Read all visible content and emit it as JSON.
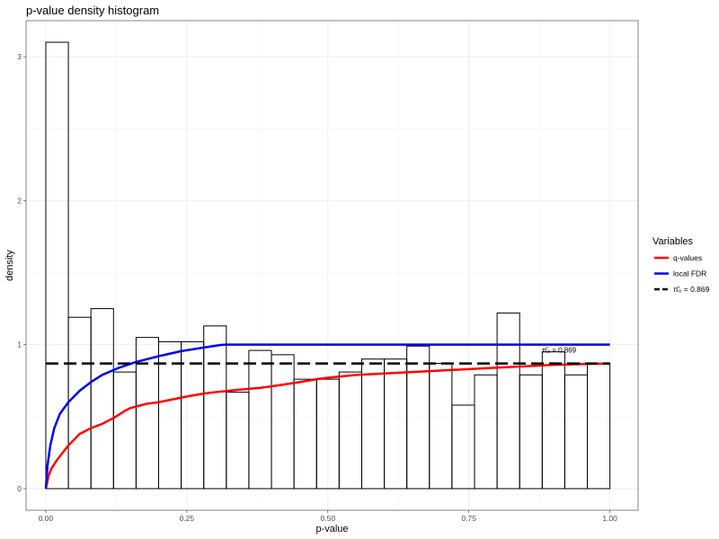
{
  "chart_data": {
    "type": "bar",
    "title": "p-value density histogram",
    "xlabel": "p-value",
    "ylabel": "density",
    "xlim": [
      -0.035,
      1.05
    ],
    "ylim": [
      -0.15,
      3.25
    ],
    "x_ticks": [
      0.0,
      0.25,
      0.5,
      0.75,
      1.0
    ],
    "x_tick_labels": [
      "0.00",
      "0.25",
      "0.50",
      "0.75",
      "1.00"
    ],
    "y_ticks": [
      0,
      1,
      2,
      3
    ],
    "y_tick_labels": [
      "0",
      "1",
      "2",
      "3"
    ],
    "grid": true,
    "histogram": {
      "bin_width": 0.04,
      "bins_start": [
        0.0,
        0.04,
        0.08,
        0.12,
        0.16,
        0.2,
        0.24,
        0.28,
        0.32,
        0.36,
        0.4,
        0.44,
        0.48,
        0.52,
        0.56,
        0.6,
        0.64,
        0.68,
        0.72,
        0.76,
        0.8,
        0.84,
        0.88,
        0.92,
        0.96
      ],
      "density": [
        3.1,
        1.19,
        1.25,
        0.81,
        1.05,
        1.02,
        1.02,
        1.13,
        0.67,
        0.96,
        0.93,
        0.76,
        0.76,
        0.81,
        0.9,
        0.9,
        0.99,
        0.87,
        0.58,
        0.79,
        1.22,
        0.79,
        0.95,
        0.79,
        0.87
      ]
    },
    "series": [
      {
        "name": "q-values",
        "color": "#ff0000",
        "x": [
          0.0,
          0.005,
          0.01,
          0.02,
          0.03,
          0.04,
          0.05,
          0.06,
          0.07,
          0.08,
          0.1,
          0.12,
          0.14,
          0.15,
          0.18,
          0.2,
          0.25,
          0.28,
          0.3,
          0.35,
          0.38,
          0.4,
          0.45,
          0.48,
          0.5,
          0.55,
          0.6,
          0.65,
          0.7,
          0.75,
          0.8,
          0.85,
          0.9,
          0.95,
          1.0
        ],
        "y": [
          0.0,
          0.09,
          0.14,
          0.2,
          0.25,
          0.3,
          0.34,
          0.38,
          0.4,
          0.42,
          0.45,
          0.49,
          0.54,
          0.56,
          0.59,
          0.6,
          0.64,
          0.66,
          0.67,
          0.69,
          0.7,
          0.71,
          0.74,
          0.76,
          0.77,
          0.79,
          0.8,
          0.81,
          0.82,
          0.83,
          0.84,
          0.85,
          0.86,
          0.865,
          0.869
        ]
      },
      {
        "name": "local FDR",
        "color": "#0000ee",
        "x": [
          0.0,
          0.003,
          0.008,
          0.015,
          0.025,
          0.04,
          0.06,
          0.08,
          0.1,
          0.13,
          0.16,
          0.2,
          0.24,
          0.28,
          0.31,
          0.32,
          1.0
        ],
        "y": [
          0.0,
          0.16,
          0.3,
          0.42,
          0.52,
          0.6,
          0.68,
          0.74,
          0.79,
          0.84,
          0.88,
          0.92,
          0.955,
          0.98,
          0.998,
          1.0,
          1.0
        ]
      },
      {
        "name": "π̂₀ = 0.869",
        "color": "#000000",
        "x": [
          0.0,
          1.0
        ],
        "y": [
          0.869,
          0.869
        ]
      }
    ],
    "annotation": {
      "text": "π̂₀ = 0.869",
      "x": 0.91,
      "y": 1.0
    },
    "legend": {
      "title": "Variables",
      "placement": "right",
      "items": [
        {
          "label": "q-values",
          "color": "#ff0000",
          "dash": "solid"
        },
        {
          "label": "local FDR",
          "color": "#0000ee",
          "dash": "solid"
        },
        {
          "label": "π̂₀ = 0.869",
          "color": "#000000",
          "dash": "dashed"
        }
      ]
    }
  }
}
